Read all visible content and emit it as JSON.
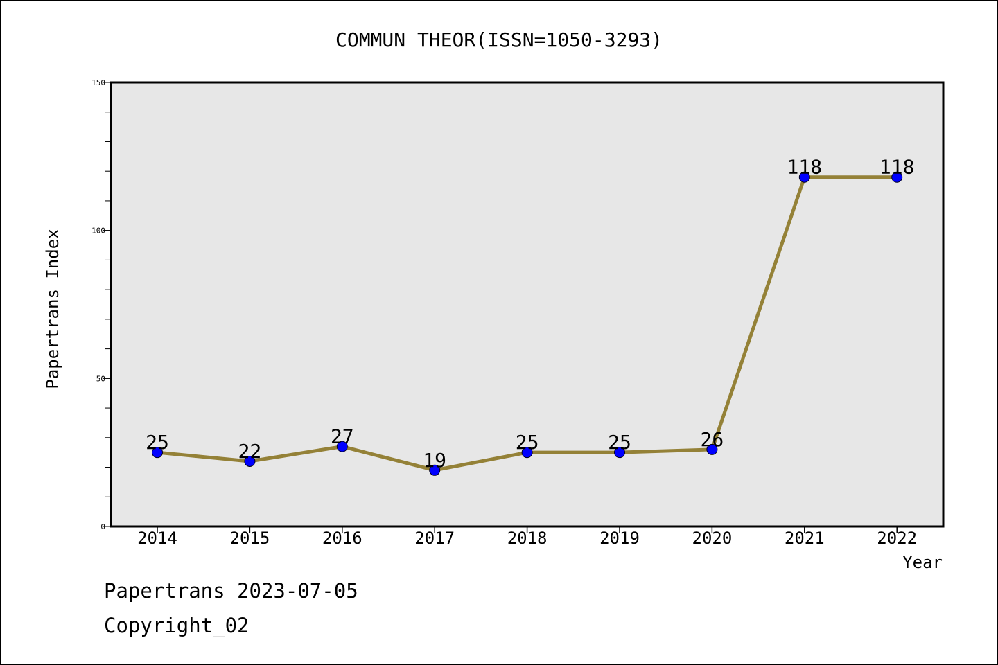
{
  "chart_data": {
    "type": "line",
    "title": "COMMUN THEOR(ISSN=1050-3293)",
    "xlabel": "Year",
    "ylabel": "Papertrans Index",
    "categories": [
      "2014",
      "2015",
      "2016",
      "2017",
      "2018",
      "2019",
      "2020",
      "2021",
      "2022"
    ],
    "series": [
      {
        "values": [
          25,
          22,
          27,
          19,
          25,
          25,
          26,
          118,
          118
        ]
      }
    ],
    "ylim": [
      0,
      150
    ],
    "y_major_ticks": [
      0,
      50,
      100,
      150
    ],
    "y_minor_step": 10,
    "grid": false,
    "data_labels": true,
    "colors": {
      "line": "#948137",
      "marker": "#0000ff",
      "plot_background": "#e7e7e7"
    }
  },
  "footer": {
    "line1": "Papertrans 2023-07-05",
    "line2": "Copyright_02"
  }
}
